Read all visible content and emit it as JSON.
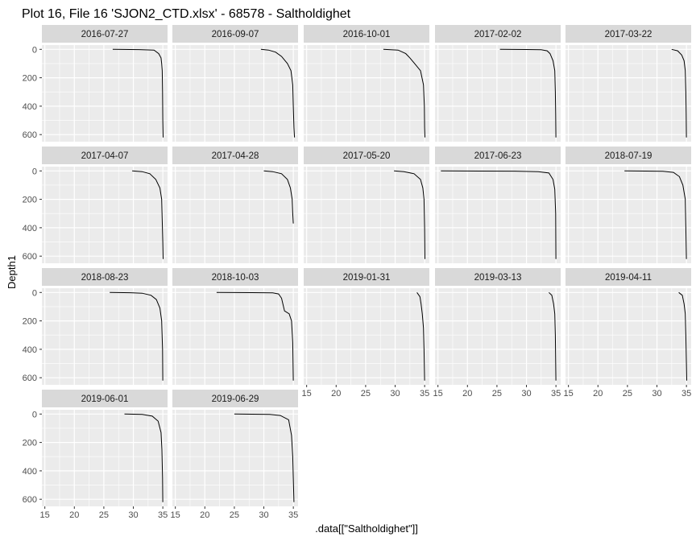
{
  "chart_data": {
    "type": "line",
    "title": "Plot 16, File 16 'SJON2_CTD.xlsx' - 68578  -  Saltholdighet",
    "xlabel": ".data[[\"Saltholdighet\"]]",
    "ylabel": "Depth1",
    "xlim": [
      14.5,
      35.8
    ],
    "ylim": [
      650,
      -30
    ],
    "y_reversed": true,
    "x_ticks": [
      15,
      20,
      25,
      30,
      35
    ],
    "y_ticks": [
      0,
      200,
      400,
      600
    ],
    "grid": true,
    "facets": [
      {
        "label": "2016-07-27",
        "x": [
          26.5,
          31,
          33.5,
          34.3,
          34.7,
          34.8,
          34.9,
          34.95,
          35.0,
          35.05
        ],
        "y": [
          0,
          2,
          5,
          30,
          60,
          100,
          150,
          300,
          500,
          620
        ]
      },
      {
        "label": "2016-09-07",
        "x": [
          29.5,
          30.8,
          32.0,
          33.0,
          34.0,
          34.6,
          34.9,
          35.0,
          35.1,
          35.2
        ],
        "y": [
          0,
          5,
          20,
          50,
          100,
          150,
          250,
          400,
          550,
          620
        ]
      },
      {
        "label": "2016-10-01",
        "x": [
          28.0,
          30.5,
          31.8,
          32.5,
          33.3,
          34.3,
          34.8,
          34.95,
          35.0,
          35.05
        ],
        "y": [
          0,
          5,
          30,
          60,
          100,
          150,
          250,
          400,
          550,
          620
        ]
      },
      {
        "label": "2017-02-02",
        "x": [
          25.5,
          30.0,
          32.5,
          33.5,
          34.0,
          34.5,
          34.8,
          34.9,
          34.95,
          35.0
        ],
        "y": [
          0,
          1,
          3,
          10,
          30,
          80,
          150,
          300,
          450,
          620
        ]
      },
      {
        "label": "2017-03-22",
        "x": [
          32.5,
          33.5,
          34.2,
          34.6,
          34.8,
          34.9,
          34.95,
          35.0
        ],
        "y": [
          0,
          10,
          40,
          80,
          150,
          300,
          450,
          620
        ]
      },
      {
        "label": "2017-04-07",
        "x": [
          29.8,
          31.5,
          32.8,
          33.8,
          34.5,
          34.8,
          34.9,
          35.0,
          35.05
        ],
        "y": [
          0,
          5,
          20,
          60,
          120,
          200,
          350,
          500,
          620
        ]
      },
      {
        "label": "2017-04-28",
        "x": [
          30.0,
          31.5,
          33.0,
          34.0,
          34.5,
          34.8,
          34.9,
          35.0
        ],
        "y": [
          0,
          5,
          20,
          60,
          120,
          200,
          300,
          370
        ]
      },
      {
        "label": "2017-05-20",
        "x": [
          29.8,
          31.5,
          33.2,
          34.3,
          34.7,
          34.9,
          35.0,
          35.05
        ],
        "y": [
          0,
          5,
          20,
          60,
          120,
          200,
          400,
          620
        ]
      },
      {
        "label": "2017-06-23",
        "x": [
          15.5,
          22.0,
          28.0,
          32.0,
          33.8,
          34.5,
          34.8,
          34.95,
          35.0
        ],
        "y": [
          0,
          1,
          2,
          5,
          15,
          60,
          130,
          300,
          620
        ]
      },
      {
        "label": "2018-07-19",
        "x": [
          24.5,
          28.0,
          31.0,
          32.8,
          33.8,
          34.4,
          34.8,
          34.9,
          35.0
        ],
        "y": [
          0,
          1,
          3,
          10,
          40,
          100,
          200,
          400,
          620
        ]
      },
      {
        "label": "2018-08-23",
        "x": [
          26.0,
          29.5,
          31.5,
          33.0,
          33.9,
          34.5,
          34.8,
          34.95,
          35.0
        ],
        "y": [
          0,
          2,
          5,
          20,
          50,
          110,
          200,
          400,
          620
        ]
      },
      {
        "label": "2018-10-03",
        "x": [
          22.0,
          28.0,
          31.5,
          32.5,
          33.0,
          33.5,
          34.3,
          34.7,
          34.9,
          35.0
        ],
        "y": [
          0,
          1,
          3,
          10,
          40,
          130,
          150,
          200,
          350,
          620
        ]
      },
      {
        "label": "2019-01-31",
        "x": [
          33.7,
          34.2,
          34.4,
          34.6,
          34.8,
          34.9,
          35.0
        ],
        "y": [
          0,
          30,
          80,
          150,
          250,
          400,
          620
        ]
      },
      {
        "label": "2019-03-13",
        "x": [
          33.8,
          34.3,
          34.6,
          34.8,
          34.9,
          35.0
        ],
        "y": [
          0,
          20,
          80,
          150,
          300,
          620
        ]
      },
      {
        "label": "2019-04-11",
        "x": [
          33.7,
          34.3,
          34.6,
          34.8,
          34.9,
          35.0,
          35.05
        ],
        "y": [
          0,
          20,
          80,
          150,
          300,
          500,
          620
        ]
      },
      {
        "label": "2019-06-01",
        "x": [
          28.5,
          31.5,
          33.2,
          34.2,
          34.7,
          34.85,
          34.95,
          35.0
        ],
        "y": [
          0,
          3,
          15,
          50,
          130,
          250,
          450,
          620
        ]
      },
      {
        "label": "2019-06-29",
        "x": [
          25.0,
          28.0,
          31.0,
          32.8,
          34.2,
          34.7,
          34.9,
          35.0,
          35.1
        ],
        "y": [
          0,
          1,
          3,
          10,
          40,
          150,
          300,
          450,
          620
        ]
      }
    ]
  },
  "colors": {
    "panel_bg": "#ebebeb",
    "strip_bg": "#d9d9d9",
    "grid_major": "#ffffff",
    "line": "#000000",
    "tick_text": "#4d4d4d"
  }
}
